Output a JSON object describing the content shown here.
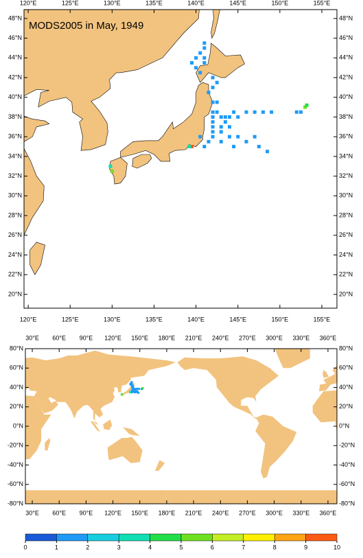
{
  "maps": [
    {
      "title": "MODS2005 in May, 1949",
      "xlim": [
        119.5,
        156.8
      ],
      "ylim": [
        18.6,
        48.9
      ],
      "xticks": [
        {
          "value": 120,
          "label": "120°E"
        },
        {
          "value": 125,
          "label": "125°E"
        },
        {
          "value": 130,
          "label": "130°E"
        },
        {
          "value": 135,
          "label": "135°E"
        },
        {
          "value": 140,
          "label": "140°E"
        },
        {
          "value": 145,
          "label": "145°E"
        },
        {
          "value": 150,
          "label": "150°E"
        },
        {
          "value": 155,
          "label": "155°E"
        }
      ],
      "yticks": [
        {
          "value": 20,
          "label": "20°N"
        },
        {
          "value": 22,
          "label": "22°N"
        },
        {
          "value": 24,
          "label": "24°N"
        },
        {
          "value": 26,
          "label": "26°N"
        },
        {
          "value": 28,
          "label": "28°N"
        },
        {
          "value": 30,
          "label": "30°N"
        },
        {
          "value": 32,
          "label": "32°N"
        },
        {
          "value": 34,
          "label": "34°N"
        },
        {
          "value": 36,
          "label": "36°N"
        },
        {
          "value": 38,
          "label": "38°N"
        },
        {
          "value": 40,
          "label": "40°N"
        },
        {
          "value": 42,
          "label": "42°N"
        },
        {
          "value": 44,
          "label": "44°N"
        },
        {
          "value": 46,
          "label": "46°N"
        },
        {
          "value": 48,
          "label": "48°N"
        }
      ]
    },
    {
      "xlim": [
        22.3,
        370
      ],
      "ylim": [
        -80,
        80
      ],
      "xticks": [
        {
          "value": 30,
          "label": "30°E"
        },
        {
          "value": 60,
          "label": "60°E"
        },
        {
          "value": 90,
          "label": "90°E"
        },
        {
          "value": 120,
          "label": "120°E"
        },
        {
          "value": 150,
          "label": "150°E"
        },
        {
          "value": 180,
          "label": "180°E"
        },
        {
          "value": 210,
          "label": "210°E"
        },
        {
          "value": 240,
          "label": "240°E"
        },
        {
          "value": 270,
          "label": "270°E"
        },
        {
          "value": 300,
          "label": "300°E"
        },
        {
          "value": 330,
          "label": "330°E"
        },
        {
          "value": 360,
          "label": "360°E"
        }
      ],
      "yticks": [
        {
          "value": -80,
          "label": "-80°N"
        },
        {
          "value": -60,
          "label": "-60°N"
        },
        {
          "value": -40,
          "label": "-40°N"
        },
        {
          "value": -20,
          "label": "-20°N"
        },
        {
          "value": 0,
          "label": "0°N"
        },
        {
          "value": 20,
          "label": "20°N"
        },
        {
          "value": 40,
          "label": "40°N"
        },
        {
          "value": 60,
          "label": "60°N"
        },
        {
          "value": 80,
          "label": "80°N"
        }
      ]
    }
  ],
  "observations": [
    {
      "lon": 141,
      "lat": 45.5,
      "value": 1.5
    },
    {
      "lon": 141,
      "lat": 45,
      "value": 1.5
    },
    {
      "lon": 140.5,
      "lat": 44.5,
      "value": 1.5
    },
    {
      "lon": 140,
      "lat": 44,
      "value": 1.5
    },
    {
      "lon": 139.5,
      "lat": 43.5,
      "value": 1.5
    },
    {
      "lon": 140,
      "lat": 43,
      "value": 1.5
    },
    {
      "lon": 141,
      "lat": 44,
      "value": 1.5
    },
    {
      "lon": 141,
      "lat": 43.5,
      "value": 1.5
    },
    {
      "lon": 140.5,
      "lat": 42.5,
      "value": 1.5
    },
    {
      "lon": 142,
      "lat": 42,
      "value": 1.5
    },
    {
      "lon": 142.5,
      "lat": 41.5,
      "value": 1.5
    },
    {
      "lon": 142,
      "lat": 41,
      "value": 1.5
    },
    {
      "lon": 141.5,
      "lat": 40.5,
      "value": 1.5
    },
    {
      "lon": 142,
      "lat": 39.5,
      "value": 1.5
    },
    {
      "lon": 142.5,
      "lat": 39.5,
      "value": 1.5
    },
    {
      "lon": 142,
      "lat": 38.5,
      "value": 1.5
    },
    {
      "lon": 142,
      "lat": 38,
      "value": 1.5
    },
    {
      "lon": 142,
      "lat": 37.5,
      "value": 1.5
    },
    {
      "lon": 142,
      "lat": 37,
      "value": 1.5
    },
    {
      "lon": 142,
      "lat": 36.5,
      "value": 1.5
    },
    {
      "lon": 142,
      "lat": 36,
      "value": 1.5
    },
    {
      "lon": 142.5,
      "lat": 38.5,
      "value": 1.5
    },
    {
      "lon": 143,
      "lat": 38,
      "value": 1.5
    },
    {
      "lon": 143,
      "lat": 37,
      "value": 1.5
    },
    {
      "lon": 143,
      "lat": 36.5,
      "value": 1.5
    },
    {
      "lon": 143.5,
      "lat": 38,
      "value": 1.5
    },
    {
      "lon": 143.5,
      "lat": 37.5,
      "value": 1.5
    },
    {
      "lon": 144,
      "lat": 38,
      "value": 1.5
    },
    {
      "lon": 144,
      "lat": 37,
      "value": 1.5
    },
    {
      "lon": 144,
      "lat": 36,
      "value": 1.5
    },
    {
      "lon": 144.5,
      "lat": 38.5,
      "value": 1.5
    },
    {
      "lon": 145,
      "lat": 38,
      "value": 1.5
    },
    {
      "lon": 145,
      "lat": 36,
      "value": 1.5
    },
    {
      "lon": 146,
      "lat": 38.5,
      "value": 1.5
    },
    {
      "lon": 146,
      "lat": 35.5,
      "value": 1.5
    },
    {
      "lon": 147,
      "lat": 38.5,
      "value": 1.5
    },
    {
      "lon": 147,
      "lat": 36,
      "value": 1.5
    },
    {
      "lon": 147.5,
      "lat": 35,
      "value": 1.5
    },
    {
      "lon": 148,
      "lat": 38.5,
      "value": 1.5
    },
    {
      "lon": 148.5,
      "lat": 34.5,
      "value": 1.5
    },
    {
      "lon": 149,
      "lat": 38.5,
      "value": 1.5
    },
    {
      "lon": 141.5,
      "lat": 35.5,
      "value": 1.5
    },
    {
      "lon": 141,
      "lat": 35,
      "value": 1.5
    },
    {
      "lon": 140.5,
      "lat": 36,
      "value": 1.5
    },
    {
      "lon": 143,
      "lat": 35.5,
      "value": 1.5
    },
    {
      "lon": 144.5,
      "lat": 35,
      "value": 1.5
    },
    {
      "lon": 152,
      "lat": 38.5,
      "value": 1.5
    },
    {
      "lon": 152.5,
      "lat": 38.5,
      "value": 1.5
    },
    {
      "lon": 153,
      "lat": 39,
      "value": 5
    },
    {
      "lon": 153.2,
      "lat": 39.2,
      "value": 4
    },
    {
      "lon": 139.5,
      "lat": 35,
      "value": 9.5
    },
    {
      "lon": 139.2,
      "lat": 35,
      "value": 3
    },
    {
      "lon": 129.8,
      "lat": 33,
      "value": 3
    },
    {
      "lon": 130,
      "lat": 32.5,
      "value": 5
    }
  ],
  "colorbar": {
    "levels": [
      0,
      1,
      2,
      3,
      4,
      5,
      6,
      7,
      8,
      9,
      10
    ],
    "colors": [
      "#1a5ad6",
      "#1f9bf5",
      "#18cde0",
      "#10dfb4",
      "#22de4a",
      "#6ee020",
      "#c4ee22",
      "#fff000",
      "#ffa514",
      "#ff5a14"
    ]
  }
}
